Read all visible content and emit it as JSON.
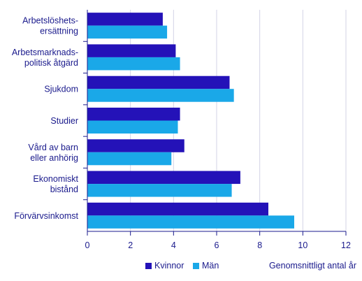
{
  "chart_data": {
    "type": "bar",
    "orientation": "horizontal",
    "categories": [
      [
        "Arbetslöshets-",
        "ersättning"
      ],
      [
        "Arbetsmarknads-",
        "politisk åtgärd"
      ],
      [
        "Sjukdom"
      ],
      [
        "Studier"
      ],
      [
        "Vård av barn",
        "eller anhörig"
      ],
      [
        "Ekonomiskt",
        "bistånd"
      ],
      [
        "Förvärvsinkomst"
      ]
    ],
    "series": [
      {
        "name": "Kvinnor",
        "color": "#2412B8",
        "values": [
          3.5,
          4.1,
          6.6,
          4.3,
          4.5,
          7.1,
          8.4
        ]
      },
      {
        "name": "Män",
        "color": "#1AA8E8",
        "values": [
          3.7,
          4.3,
          6.8,
          4.2,
          3.9,
          6.7,
          9.6
        ]
      }
    ],
    "xlim": [
      0,
      12
    ],
    "xticks": [
      0,
      2,
      4,
      6,
      8,
      10,
      12
    ],
    "grid": "vertical",
    "unit_label": "Genomsnittligt  antal år",
    "legend_position": "bottom"
  }
}
